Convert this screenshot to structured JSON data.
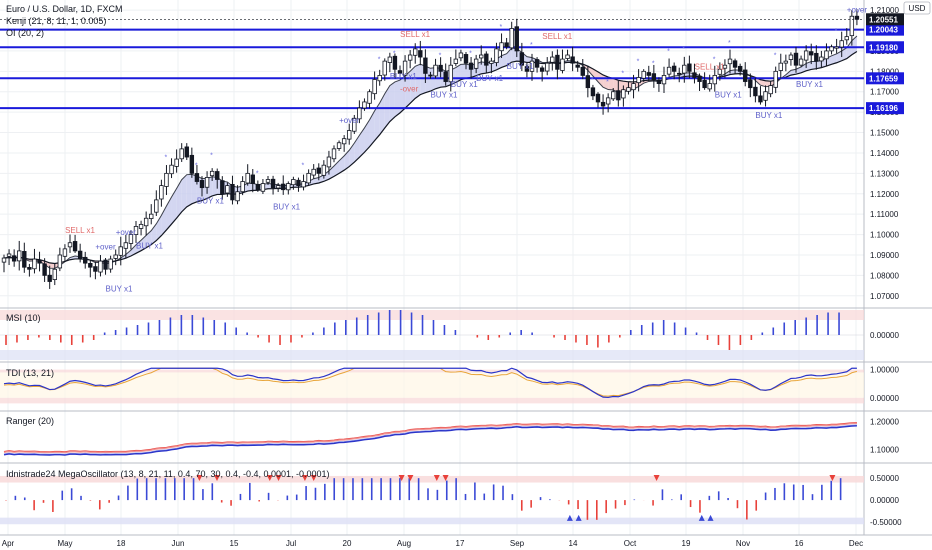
{
  "header": {
    "symbol_title": "Euro / U.S. Dollar, 1D, FXCM",
    "indicator_1": "Kenji (21, 8, 11, 1, 0.005)",
    "indicator_2": "OI (20, 2)",
    "currency": "USD"
  },
  "colors": {
    "up_candle": "#ffffff",
    "down_candle": "#131722",
    "sr_line": "#1a1adb",
    "bull_cloud": "#c8ccee",
    "bear_cloud": "#f2c4c4",
    "histo_up": "#3a49d6",
    "histo_down": "#e8413a",
    "price_tag": "#131722"
  },
  "price_axis": {
    "ticks": [
      "1.21000",
      "1.20000",
      "1.19000",
      "1.18000",
      "1.17000",
      "1.16000",
      "1.15000",
      "1.14000",
      "1.13000",
      "1.12000",
      "1.11000",
      "1.10000",
      "1.09000",
      "1.08000",
      "1.07000"
    ],
    "tick_values": [
      1.21,
      1.2,
      1.19,
      1.18,
      1.17,
      1.16,
      1.15,
      1.14,
      1.13,
      1.12,
      1.11,
      1.1,
      1.09,
      1.08,
      1.07
    ],
    "last_price": "1.20551",
    "level_labels": [
      "1.20043",
      "1.19180",
      "1.17659",
      "1.16196"
    ],
    "level_values": [
      1.20043,
      1.1918,
      1.17659,
      1.16196
    ]
  },
  "time_axis": {
    "labels": [
      "Apr",
      "May",
      "18",
      "Jun",
      "15",
      "Jul",
      "20",
      "Aug",
      "17",
      "Sep",
      "14",
      "Oct",
      "19",
      "Nov",
      "16",
      "Dec"
    ]
  },
  "signals": {
    "buy_labels": [
      "BUY x1",
      "BUY x1",
      "BUY x1",
      "BUY x1",
      "BUY x1",
      "BUY x1",
      "BUY x1",
      "BUY x1",
      "BUY x1",
      "BUY x1",
      "BUY x1",
      "BUY x1"
    ],
    "sell_labels": [
      "SELL x1",
      "SELL x1",
      "SELL x1",
      "SELL x1"
    ],
    "over_labels": [
      "+over",
      "+over",
      "-over",
      "+over",
      "+over"
    ]
  },
  "chart_data": [
    {
      "type": "candlestick",
      "title": "Euro / U.S. Dollar, 1D, FXCM",
      "y_range": [
        1.065,
        1.213
      ],
      "ohlc_summary": {
        "start": {
          "date": "Apr",
          "close": 1.089
        },
        "may_low": 1.076,
        "june_high": 1.142,
        "july_start": 1.123,
        "aug_high": 1.191,
        "sep_high": 1.201,
        "oct_low": 1.162,
        "nov_low": 1.161,
        "last_close": 1.20551
      },
      "closes": [
        1.0885,
        1.0905,
        1.087,
        1.092,
        1.084,
        1.083,
        1.088,
        1.086,
        1.08,
        1.077,
        1.083,
        1.09,
        1.093,
        1.096,
        1.092,
        1.088,
        1.086,
        1.084,
        1.082,
        1.087,
        1.083,
        1.088,
        1.09,
        1.094,
        1.096,
        1.1,
        1.104,
        1.105,
        1.108,
        1.11,
        1.117,
        1.124,
        1.13,
        1.134,
        1.137,
        1.142,
        1.138,
        1.13,
        1.126,
        1.123,
        1.128,
        1.131,
        1.127,
        1.12,
        1.124,
        1.117,
        1.121,
        1.126,
        1.13,
        1.125,
        1.122,
        1.125,
        1.127,
        1.123,
        1.124,
        1.122,
        1.125,
        1.127,
        1.124,
        1.126,
        1.13,
        1.132,
        1.13,
        1.134,
        1.138,
        1.142,
        1.145,
        1.147,
        1.151,
        1.157,
        1.162,
        1.165,
        1.17,
        1.176,
        1.178,
        1.185,
        1.187,
        1.181,
        1.179,
        1.185,
        1.188,
        1.191,
        1.187,
        1.179,
        1.178,
        1.183,
        1.18,
        1.175,
        1.183,
        1.186,
        1.189,
        1.184,
        1.181,
        1.186,
        1.188,
        1.183,
        1.185,
        1.191,
        1.194,
        1.192,
        1.201,
        1.19,
        1.183,
        1.18,
        1.185,
        1.182,
        1.18,
        1.184,
        1.187,
        1.181,
        1.186,
        1.188,
        1.184,
        1.182,
        1.178,
        1.172,
        1.168,
        1.165,
        1.163,
        1.167,
        1.17,
        1.166,
        1.171,
        1.172,
        1.174,
        1.177,
        1.18,
        1.178,
        1.176,
        1.174,
        1.178,
        1.182,
        1.18,
        1.179,
        1.183,
        1.18,
        1.177,
        1.175,
        1.172,
        1.174,
        1.178,
        1.181,
        1.183,
        1.186,
        1.182,
        1.18,
        1.175,
        1.172,
        1.168,
        1.165,
        1.17,
        1.173,
        1.18,
        1.184,
        1.185,
        1.188,
        1.183,
        1.186,
        1.19,
        1.188,
        1.185,
        1.187,
        1.19,
        1.192,
        1.192,
        1.195,
        1.197,
        1.207,
        1.2055
      ]
    },
    {
      "type": "bar",
      "title": "MSI (10)",
      "y_ticks": [
        "0.00000"
      ],
      "y_range": [
        -1,
        1
      ],
      "values": [
        -0.4,
        -0.3,
        -0.2,
        -0.1,
        -0.2,
        -0.3,
        -0.4,
        -0.3,
        -0.2,
        0.1,
        0.2,
        0.3,
        0.4,
        0.5,
        0.6,
        0.7,
        0.8,
        0.8,
        0.7,
        0.6,
        0.5,
        0.3,
        0.1,
        -0.1,
        -0.3,
        -0.4,
        -0.3,
        -0.1,
        0.1,
        0.3,
        0.5,
        0.6,
        0.7,
        0.8,
        0.9,
        1.0,
        1.0,
        0.9,
        0.8,
        0.6,
        0.4,
        0.2,
        0.0,
        -0.1,
        -0.2,
        -0.1,
        0.1,
        0.2,
        0.1,
        0.0,
        -0.1,
        -0.2,
        -0.3,
        -0.4,
        -0.5,
        -0.3,
        -0.1,
        0.2,
        0.4,
        0.5,
        0.6,
        0.5,
        0.3,
        0.1,
        -0.2,
        -0.4,
        -0.6,
        -0.4,
        -0.2,
        0.1,
        0.3,
        0.5,
        0.6,
        0.7,
        0.8,
        0.9,
        0.9
      ]
    },
    {
      "type": "line",
      "title": "TDI (13, 21)",
      "y_ticks": [
        "1.00000",
        "0.00000"
      ],
      "y_range": [
        -0.4,
        1.2
      ]
    },
    {
      "type": "line",
      "title": "Ranger (20)",
      "y_ticks": [
        "1.20000",
        "1.10000"
      ],
      "y_range": [
        1.06,
        1.23
      ]
    },
    {
      "type": "bar",
      "title": "Idnistrade24 MegaOscillator (13, 8, 21, 11, 0.4, 70, 30, 0.4, -0.4, 0.0001, -0.0001)",
      "y_ticks": [
        "0.50000",
        "0.00000",
        "-0.50000"
      ],
      "y_range": [
        -0.75,
        0.8
      ]
    }
  ]
}
